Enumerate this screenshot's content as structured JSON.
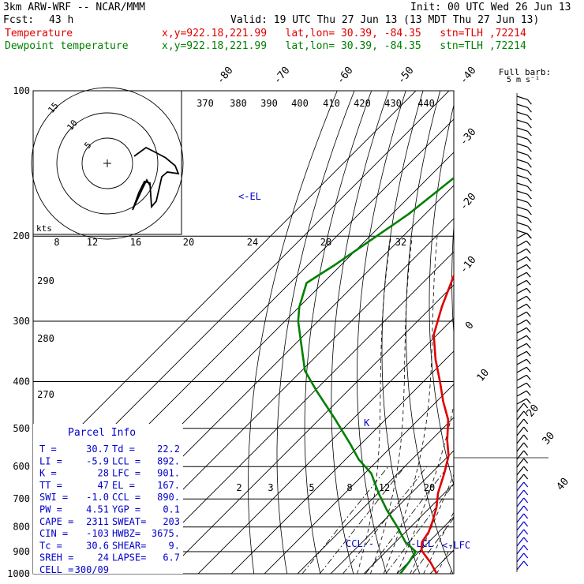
{
  "header": {
    "model": "3km ARW-WRF -- NCAR/MMM",
    "init": "Init: 00 UTC Wed 26 Jun 13",
    "fcst_label": "Fcst:",
    "fcst_value": "43 h",
    "valid": "Valid: 19 UTC Thu 27 Jun 13 (13 MDT Thu 27 Jun 13)",
    "temp_label": "Temperature",
    "temp_info": "x,y=922.18,221.99   lat,lon= 30.39, -84.35   stn=TLH ,72214",
    "dew_label": "Dewpoint temperature",
    "dew_info": "x,y=922.18,221.99   lat,lon= 30.39, -84.35   stn=TLH ,72214"
  },
  "colors": {
    "temperature": "#e00000",
    "dewpoint": "#008000",
    "grid": "#000000",
    "barb": "#0000cc"
  },
  "barb_key": {
    "title": "Full barb:",
    "value": "5 m s⁻¹"
  },
  "hodograph": {
    "rings_label": [
      "5",
      "10",
      "15"
    ],
    "kts_label": "kts"
  },
  "el_label": "EL",
  "ccl_label": "CCL",
  "lcl_label": "LCL",
  "lfc_label": "LFC",
  "parcel_info": {
    "title": "Parcel Info",
    "rows": [
      [
        "T   =",
        "30.7",
        "Td  =",
        "22.2"
      ],
      [
        "LI  =",
        "-5.9",
        "LCL =",
        "892."
      ],
      [
        "K   =",
        "28",
        "LFC =",
        "901."
      ],
      [
        "TT  =",
        "47",
        "EL  =",
        "167."
      ],
      [
        "SWI =",
        "-1.0",
        "CCL =",
        "890."
      ],
      [
        "PW  =",
        "4.51",
        "YGP =",
        "0.1"
      ],
      [
        "CAPE =",
        "2311",
        "SWEAT=",
        "203"
      ],
      [
        "CIN  =",
        "-103",
        "HWBZ=",
        "3675."
      ],
      [
        "Tc  =",
        "30.6",
        "SHEAR=",
        "9."
      ],
      [
        "SREH =",
        "24",
        "LAPSE=",
        "6.7"
      ],
      [
        "CELL =",
        "300/09",
        "",
        ""
      ]
    ]
  },
  "chart_data": {
    "type": "line",
    "title": "",
    "pressure_levels": [
      100,
      200,
      300,
      400,
      500,
      600,
      700,
      800,
      900,
      1000
    ],
    "pressure_tick_labels": [
      "100",
      "200",
      "300",
      "400",
      "500",
      "600",
      "700",
      "800",
      "900",
      "1000"
    ],
    "isotherm_labels": [
      "-80",
      "-70",
      "-60",
      "-50",
      "-40",
      "-30",
      "-20",
      "-10",
      "0",
      "10",
      "20",
      "30",
      "40"
    ],
    "theta_top_labels": [
      "370",
      "380",
      "390",
      "400",
      "410",
      "420",
      "430",
      "440"
    ],
    "theta_left_labels": [
      "290",
      "280",
      "270"
    ],
    "mixing_ratio_upper_labels": [
      "8",
      "12",
      "16",
      "20",
      "24",
      "28",
      "32"
    ],
    "mixing_ratio_lower_labels": [
      "2",
      "3",
      "5",
      "8",
      "12",
      "20"
    ],
    "series": [
      {
        "name": "Temperature",
        "points": [
          [
            -63,
            150
          ],
          [
            -60,
            170
          ],
          [
            -58,
            190
          ],
          [
            -56,
            210
          ],
          [
            -53,
            240
          ],
          [
            -47,
            280
          ],
          [
            -41,
            320
          ],
          [
            -33,
            360
          ],
          [
            -25,
            400
          ],
          [
            -18,
            440
          ],
          [
            -11,
            480
          ],
          [
            -5,
            530
          ],
          [
            0,
            570
          ],
          [
            4,
            620
          ],
          [
            8,
            680
          ],
          [
            12,
            730
          ],
          [
            15,
            780
          ],
          [
            17,
            820
          ],
          [
            18,
            860
          ],
          [
            20,
            890
          ],
          [
            21,
            900
          ],
          [
            27,
            950
          ],
          [
            32,
            1000
          ]
        ]
      },
      {
        "name": "Dewpoint temperature",
        "points": [
          [
            -80,
            100
          ],
          [
            -81,
            140
          ],
          [
            -85,
            180
          ],
          [
            -88,
            200
          ],
          [
            -92,
            230
          ],
          [
            -95,
            250
          ],
          [
            -90,
            280
          ],
          [
            -86,
            300
          ],
          [
            -77,
            340
          ],
          [
            -69,
            380
          ],
          [
            -59,
            420
          ],
          [
            -45,
            480
          ],
          [
            -33,
            540
          ],
          [
            -26,
            580
          ],
          [
            -18,
            620
          ],
          [
            -10,
            680
          ],
          [
            -2,
            740
          ],
          [
            6,
            800
          ],
          [
            13,
            860
          ],
          [
            19,
            900
          ],
          [
            20,
            940
          ],
          [
            21,
            1000
          ]
        ]
      }
    ]
  }
}
